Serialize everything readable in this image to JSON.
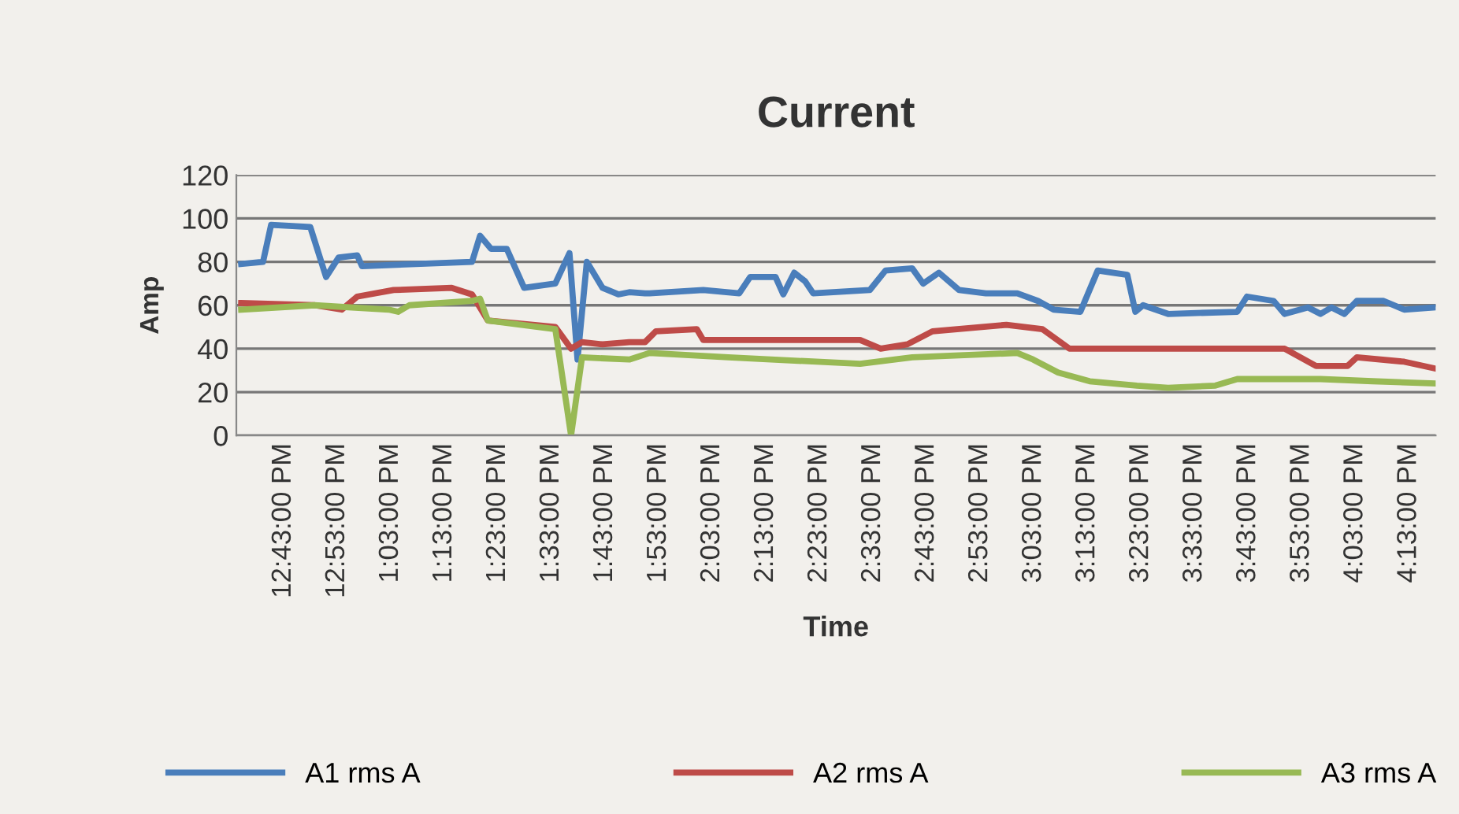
{
  "chart_data": {
    "type": "line",
    "title": "Current",
    "xlabel": "Time",
    "ylabel": "Amp",
    "xlim": [
      12.57,
      16.3
    ],
    "xticks": [
      {
        "value": 12.716666666666667,
        "label": "12:43:00 PM"
      },
      {
        "value": 12.883333333333333,
        "label": "12:53:00 PM"
      },
      {
        "value": 13.05,
        "label": "1:03:00 PM"
      },
      {
        "value": 13.216666666666667,
        "label": "1:13:00 PM"
      },
      {
        "value": 13.383333333333333,
        "label": "1:23:00 PM"
      },
      {
        "value": 13.55,
        "label": "1:33:00 PM"
      },
      {
        "value": 13.716666666666667,
        "label": "1:43:00 PM"
      },
      {
        "value": 13.883333333333333,
        "label": "1:53:00 PM"
      },
      {
        "value": 14.05,
        "label": "2:03:00 PM"
      },
      {
        "value": 14.216666666666667,
        "label": "2:13:00 PM"
      },
      {
        "value": 14.383333333333333,
        "label": "2:23:00 PM"
      },
      {
        "value": 14.55,
        "label": "2:33:00 PM"
      },
      {
        "value": 14.716666666666667,
        "label": "2:43:00 PM"
      },
      {
        "value": 14.883333333333333,
        "label": "2:53:00 PM"
      },
      {
        "value": 15.05,
        "label": "3:03:00 PM"
      },
      {
        "value": 15.216666666666667,
        "label": "3:13:00 PM"
      },
      {
        "value": 15.383333333333333,
        "label": "3:23:00 PM"
      },
      {
        "value": 15.55,
        "label": "3:33:00 PM"
      },
      {
        "value": 15.716666666666667,
        "label": "3:43:00 PM"
      },
      {
        "value": 15.883333333333333,
        "label": "3:53:00 PM"
      },
      {
        "value": 16.05,
        "label": "4:03:00 PM"
      },
      {
        "value": 16.21666666666667,
        "label": "4:13:00 PM"
      }
    ],
    "ylim": [
      0,
      120
    ],
    "yticks": [
      0,
      20,
      40,
      60,
      80,
      100,
      120
    ],
    "grid": "y",
    "legend": "bottom",
    "line_style": "solid",
    "marker": "none",
    "series": [
      {
        "name": "A1 rms A",
        "color": "#4a7ebb",
        "x": [
          12.585,
          12.653,
          12.678,
          12.8,
          12.849,
          12.888,
          12.946,
          12.961,
          13.303,
          13.328,
          13.362,
          13.411,
          13.465,
          13.562,
          13.606,
          13.631,
          13.66,
          13.709,
          13.758,
          13.792,
          13.841,
          13.855,
          14.022,
          14.134,
          14.168,
          14.247,
          14.271,
          14.305,
          14.339,
          14.364,
          14.54,
          14.589,
          14.672,
          14.706,
          14.755,
          14.818,
          14.901,
          14.999,
          15.063,
          15.112,
          15.195,
          15.249,
          15.341,
          15.366,
          15.39,
          15.468,
          15.683,
          15.713,
          15.796,
          15.83,
          15.903,
          15.942,
          15.976,
          16.016,
          16.055,
          16.138,
          16.202,
          16.294
        ],
        "values": [
          79,
          80,
          97,
          96,
          73,
          82,
          83,
          78,
          80,
          92,
          86,
          86,
          68,
          70,
          84,
          35,
          80,
          68,
          65,
          66,
          65.5,
          65.5,
          67,
          65.5,
          73,
          73,
          65,
          75,
          71,
          65.5,
          67,
          76,
          77,
          70,
          75,
          67,
          65.5,
          65.5,
          62,
          58,
          57,
          76,
          74,
          57,
          60,
          56,
          57,
          64,
          62,
          56,
          59,
          56,
          59,
          56,
          62,
          62,
          58,
          59
        ]
      },
      {
        "name": "A2 rms A",
        "color": "#be4b48",
        "x": [
          12.585,
          12.814,
          12.898,
          12.946,
          13.059,
          13.24,
          13.303,
          13.352,
          13.562,
          13.611,
          13.645,
          13.709,
          13.792,
          13.841,
          13.875,
          14.002,
          14.022,
          14.51,
          14.574,
          14.657,
          14.735,
          14.965,
          15.077,
          15.161,
          15.292,
          15.83,
          15.928,
          16.026,
          16.055,
          16.202,
          16.294
        ],
        "values": [
          61,
          60,
          58,
          64,
          67,
          68,
          65,
          53,
          50,
          40,
          43,
          42,
          43,
          43,
          48,
          49,
          44,
          44,
          40,
          42,
          48,
          51,
          49,
          40,
          40,
          40,
          32,
          32,
          36,
          34,
          31
        ]
      },
      {
        "name": "A3 rms A",
        "color": "#98b954",
        "x": [
          12.585,
          12.814,
          13.044,
          13.073,
          13.108,
          13.303,
          13.328,
          13.352,
          13.562,
          13.611,
          13.645,
          13.792,
          13.855,
          14.1,
          14.51,
          14.672,
          14.999,
          15.048,
          15.126,
          15.224,
          15.371,
          15.468,
          15.615,
          15.683,
          15.942,
          16.104,
          16.294
        ],
        "values": [
          58,
          60,
          58,
          57,
          60,
          62,
          63,
          53,
          49,
          0,
          36,
          35,
          38,
          36,
          33,
          36,
          38,
          35,
          29,
          25,
          23,
          22,
          23,
          26,
          26,
          25,
          24
        ]
      }
    ]
  }
}
